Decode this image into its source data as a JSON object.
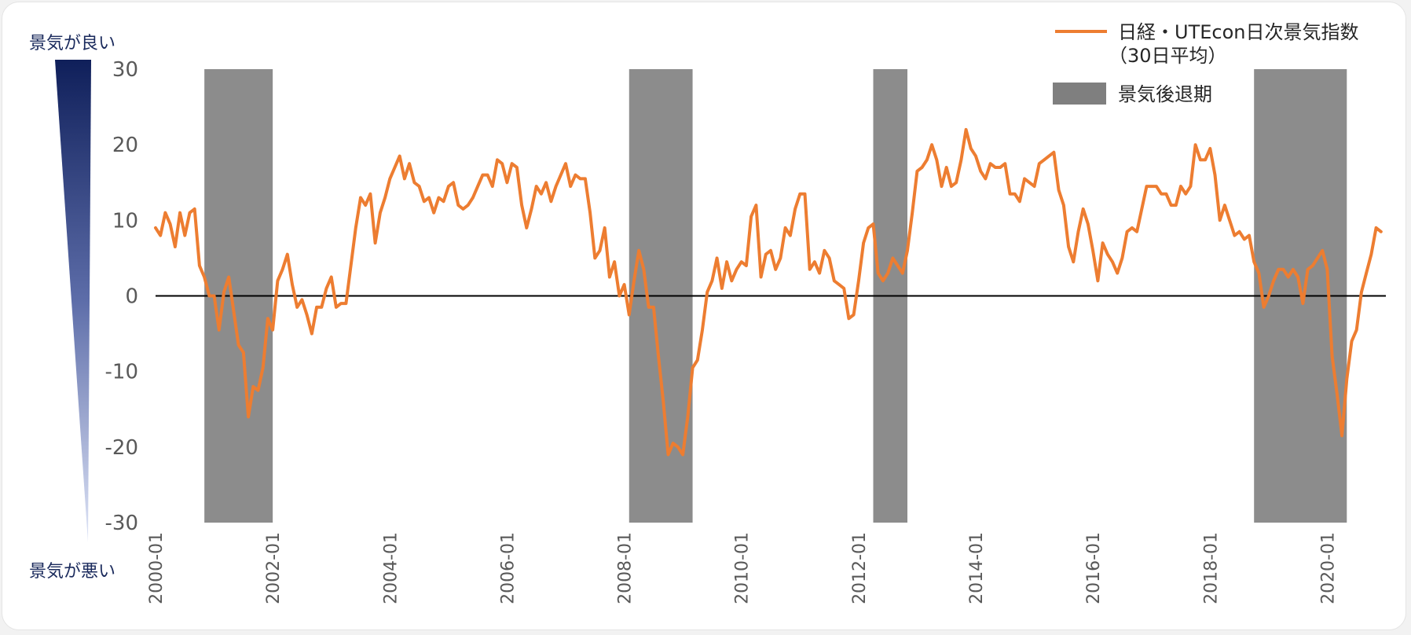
{
  "colors": {
    "line": "#ED7D31",
    "recession": "#8C8C8C",
    "zero_line": "#000000",
    "gradient_top": "#0f1f5a",
    "gradient_bottom": "#dfe5f7"
  },
  "side_labels": {
    "good": "景気が良い",
    "bad": "景気が悪い"
  },
  "chart_data": {
    "type": "line",
    "title": "",
    "xlabel": "",
    "ylabel": "",
    "ylim": [
      -30,
      30
    ],
    "y_ticks": [
      30,
      20,
      10,
      0,
      -10,
      -20,
      -30
    ],
    "x_range": [
      "2000-01",
      "2021-01"
    ],
    "x_ticks": [
      "2000-01",
      "2002-01",
      "2004-01",
      "2006-01",
      "2008-01",
      "2010-01",
      "2012-01",
      "2014-01",
      "2016-01",
      "2018-01",
      "2020-01"
    ],
    "legend_position": "top-right",
    "legend": {
      "line_label_1": "日経・UTEcon日次景気指数",
      "line_label_2": "（30日平均）",
      "shade_label": "景気後退期"
    },
    "recessions": [
      {
        "start": "2000-11",
        "end": "2002-01"
      },
      {
        "start": "2008-02",
        "end": "2009-03"
      },
      {
        "start": "2012-04",
        "end": "2012-11"
      },
      {
        "start": "2018-10",
        "end": "2020-05"
      }
    ],
    "series": [
      {
        "points": [
          [
            "2000-01",
            9
          ],
          [
            "2000-02",
            8
          ],
          [
            "2000-03",
            11
          ],
          [
            "2000-04",
            9.5
          ],
          [
            "2000-05",
            6.5
          ],
          [
            "2000-06",
            11
          ],
          [
            "2000-07",
            8
          ],
          [
            "2000-08",
            11
          ],
          [
            "2000-09",
            11.5
          ],
          [
            "2000-10",
            4
          ],
          [
            "2000-11",
            2.5
          ],
          [
            "2000-12",
            0
          ],
          [
            "2001-01",
            0
          ],
          [
            "2001-02",
            -4.5
          ],
          [
            "2001-03",
            0.5
          ],
          [
            "2001-04",
            2.5
          ],
          [
            "2001-05",
            -2
          ],
          [
            "2001-06",
            -6.5
          ],
          [
            "2001-07",
            -7.5
          ],
          [
            "2001-08",
            -16
          ],
          [
            "2001-09",
            -12
          ],
          [
            "2001-10",
            -12.5
          ],
          [
            "2001-11",
            -9.5
          ],
          [
            "2001-12",
            -3
          ],
          [
            "2002-01",
            -4.5
          ],
          [
            "2002-02",
            2
          ],
          [
            "2002-03",
            3.5
          ],
          [
            "2002-04",
            5.5
          ],
          [
            "2002-05",
            1.5
          ],
          [
            "2002-06",
            -1.5
          ],
          [
            "2002-07",
            -0.5
          ],
          [
            "2002-08",
            -2.5
          ],
          [
            "2002-09",
            -5
          ],
          [
            "2002-10",
            -1.5
          ],
          [
            "2002-11",
            -1.5
          ],
          [
            "2002-12",
            1
          ],
          [
            "2003-01",
            2.5
          ],
          [
            "2003-02",
            -1.5
          ],
          [
            "2003-03",
            -1
          ],
          [
            "2003-04",
            -1
          ],
          [
            "2003-05",
            4
          ],
          [
            "2003-06",
            9
          ],
          [
            "2003-07",
            13
          ],
          [
            "2003-08",
            12
          ],
          [
            "2003-09",
            13.5
          ],
          [
            "2003-10",
            7
          ],
          [
            "2003-11",
            11
          ],
          [
            "2003-12",
            13
          ],
          [
            "2004-01",
            15.5
          ],
          [
            "2004-02",
            17
          ],
          [
            "2004-03",
            18.5
          ],
          [
            "2004-04",
            15.5
          ],
          [
            "2004-05",
            17.5
          ],
          [
            "2004-06",
            15
          ],
          [
            "2004-07",
            14.5
          ],
          [
            "2004-08",
            12.5
          ],
          [
            "2004-09",
            13
          ],
          [
            "2004-10",
            11
          ],
          [
            "2004-11",
            13
          ],
          [
            "2004-12",
            12.5
          ],
          [
            "2005-01",
            14.5
          ],
          [
            "2005-02",
            15
          ],
          [
            "2005-03",
            12
          ],
          [
            "2005-04",
            11.5
          ],
          [
            "2005-05",
            12
          ],
          [
            "2005-06",
            13
          ],
          [
            "2005-07",
            14.5
          ],
          [
            "2005-08",
            16
          ],
          [
            "2005-09",
            16
          ],
          [
            "2005-10",
            14.5
          ],
          [
            "2005-11",
            18
          ],
          [
            "2005-12",
            17.5
          ],
          [
            "2006-01",
            15
          ],
          [
            "2006-02",
            17.5
          ],
          [
            "2006-03",
            17
          ],
          [
            "2006-04",
            12
          ],
          [
            "2006-05",
            9
          ],
          [
            "2006-06",
            11.5
          ],
          [
            "2006-07",
            14.5
          ],
          [
            "2006-08",
            13.5
          ],
          [
            "2006-09",
            15
          ],
          [
            "2006-10",
            12.5
          ],
          [
            "2006-11",
            14.5
          ],
          [
            "2006-12",
            16
          ],
          [
            "2007-01",
            17.5
          ],
          [
            "2007-02",
            14.5
          ],
          [
            "2007-03",
            16
          ],
          [
            "2007-04",
            15.5
          ],
          [
            "2007-05",
            15.5
          ],
          [
            "2007-06",
            11
          ],
          [
            "2007-07",
            5
          ],
          [
            "2007-08",
            6
          ],
          [
            "2007-09",
            9
          ],
          [
            "2007-10",
            2.5
          ],
          [
            "2007-11",
            4.5
          ],
          [
            "2007-12",
            0
          ],
          [
            "2008-01",
            1.5
          ],
          [
            "2008-02",
            -2.5
          ],
          [
            "2008-03",
            2
          ],
          [
            "2008-04",
            6
          ],
          [
            "2008-05",
            3.5
          ],
          [
            "2008-06",
            -1.5
          ],
          [
            "2008-07",
            -1.5
          ],
          [
            "2008-08",
            -8
          ],
          [
            "2008-09",
            -14
          ],
          [
            "2008-10",
            -21
          ],
          [
            "2008-11",
            -19.5
          ],
          [
            "2008-12",
            -20
          ],
          [
            "2009-01",
            -21
          ],
          [
            "2009-02",
            -16
          ],
          [
            "2009-03",
            -9.5
          ],
          [
            "2009-04",
            -8.5
          ],
          [
            "2009-05",
            -4.5
          ],
          [
            "2009-06",
            0.5
          ],
          [
            "2009-07",
            2
          ],
          [
            "2009-08",
            5
          ],
          [
            "2009-09",
            1
          ],
          [
            "2009-10",
            4.5
          ],
          [
            "2009-11",
            2
          ],
          [
            "2009-12",
            3.5
          ],
          [
            "2010-01",
            4.5
          ],
          [
            "2010-02",
            4
          ],
          [
            "2010-03",
            10.5
          ],
          [
            "2010-04",
            12
          ],
          [
            "2010-05",
            2.5
          ],
          [
            "2010-06",
            5.5
          ],
          [
            "2010-07",
            6
          ],
          [
            "2010-08",
            3.5
          ],
          [
            "2010-09",
            5
          ],
          [
            "2010-10",
            9
          ],
          [
            "2010-11",
            8
          ],
          [
            "2010-12",
            11.5
          ],
          [
            "2011-01",
            13.5
          ],
          [
            "2011-02",
            13.5
          ],
          [
            "2011-03",
            3.5
          ],
          [
            "2011-04",
            4.5
          ],
          [
            "2011-05",
            3
          ],
          [
            "2011-06",
            6
          ],
          [
            "2011-07",
            5
          ],
          [
            "2011-08",
            2
          ],
          [
            "2011-09",
            1.5
          ],
          [
            "2011-10",
            1
          ],
          [
            "2011-11",
            -3
          ],
          [
            "2011-12",
            -2.5
          ],
          [
            "2012-01",
            2
          ],
          [
            "2012-02",
            7
          ],
          [
            "2012-03",
            9
          ],
          [
            "2012-04",
            9.5
          ],
          [
            "2012-05",
            3
          ],
          [
            "2012-06",
            2
          ],
          [
            "2012-07",
            3
          ],
          [
            "2012-08",
            5
          ],
          [
            "2012-09",
            4
          ],
          [
            "2012-10",
            3
          ],
          [
            "2012-11",
            6
          ],
          [
            "2012-12",
            11
          ],
          [
            "2013-01",
            16.5
          ],
          [
            "2013-02",
            17
          ],
          [
            "2013-03",
            18
          ],
          [
            "2013-04",
            20
          ],
          [
            "2013-05",
            18
          ],
          [
            "2013-06",
            14.5
          ],
          [
            "2013-07",
            17
          ],
          [
            "2013-08",
            14.5
          ],
          [
            "2013-09",
            15
          ],
          [
            "2013-10",
            18
          ],
          [
            "2013-11",
            22
          ],
          [
            "2013-12",
            19.5
          ],
          [
            "2014-01",
            18.5
          ],
          [
            "2014-02",
            16.5
          ],
          [
            "2014-03",
            15.5
          ],
          [
            "2014-04",
            17.5
          ],
          [
            "2014-05",
            17
          ],
          [
            "2014-06",
            17
          ],
          [
            "2014-07",
            17.5
          ],
          [
            "2014-08",
            13.5
          ],
          [
            "2014-09",
            13.5
          ],
          [
            "2014-10",
            12.5
          ],
          [
            "2014-11",
            15.5
          ],
          [
            "2014-12",
            15
          ],
          [
            "2015-01",
            14.5
          ],
          [
            "2015-02",
            17.5
          ],
          [
            "2015-03",
            18
          ],
          [
            "2015-04",
            18.5
          ],
          [
            "2015-05",
            19
          ],
          [
            "2015-06",
            14
          ],
          [
            "2015-07",
            12
          ],
          [
            "2015-08",
            6.5
          ],
          [
            "2015-09",
            4.5
          ],
          [
            "2015-10",
            8.5
          ],
          [
            "2015-11",
            11.5
          ],
          [
            "2015-12",
            9.5
          ],
          [
            "2016-01",
            6
          ],
          [
            "2016-02",
            2
          ],
          [
            "2016-03",
            7
          ],
          [
            "2016-04",
            5.5
          ],
          [
            "2016-05",
            4.5
          ],
          [
            "2016-06",
            3
          ],
          [
            "2016-07",
            5
          ],
          [
            "2016-08",
            8.5
          ],
          [
            "2016-09",
            9
          ],
          [
            "2016-10",
            8.5
          ],
          [
            "2016-11",
            11.5
          ],
          [
            "2016-12",
            14.5
          ],
          [
            "2017-01",
            14.5
          ],
          [
            "2017-02",
            14.5
          ],
          [
            "2017-03",
            13.5
          ],
          [
            "2017-04",
            13.5
          ],
          [
            "2017-05",
            12
          ],
          [
            "2017-06",
            12
          ],
          [
            "2017-07",
            14.5
          ],
          [
            "2017-08",
            13.5
          ],
          [
            "2017-09",
            14.5
          ],
          [
            "2017-10",
            20
          ],
          [
            "2017-11",
            18
          ],
          [
            "2017-12",
            18
          ],
          [
            "2018-01",
            19.5
          ],
          [
            "2018-02",
            16
          ],
          [
            "2018-03",
            10
          ],
          [
            "2018-04",
            12
          ],
          [
            "2018-05",
            10
          ],
          [
            "2018-06",
            8
          ],
          [
            "2018-07",
            8.5
          ],
          [
            "2018-08",
            7.5
          ],
          [
            "2018-09",
            8
          ],
          [
            "2018-10",
            4.5
          ],
          [
            "2018-11",
            3
          ],
          [
            "2018-12",
            -1.5
          ],
          [
            "2019-01",
            0
          ],
          [
            "2019-02",
            2
          ],
          [
            "2019-03",
            3.5
          ],
          [
            "2019-04",
            3.5
          ],
          [
            "2019-05",
            2.5
          ],
          [
            "2019-06",
            3.5
          ],
          [
            "2019-07",
            2.5
          ],
          [
            "2019-08",
            -1
          ],
          [
            "2019-09",
            3.5
          ],
          [
            "2019-10",
            4
          ],
          [
            "2019-11",
            5
          ],
          [
            "2019-12",
            6
          ],
          [
            "2020-01",
            3.5
          ],
          [
            "2020-02",
            -8
          ],
          [
            "2020-03",
            -13
          ],
          [
            "2020-04",
            -18.5
          ],
          [
            "2020-05",
            -11
          ],
          [
            "2020-06",
            -6
          ],
          [
            "2020-07",
            -4.5
          ],
          [
            "2020-08",
            0.5
          ],
          [
            "2020-09",
            3
          ],
          [
            "2020-10",
            5.5
          ],
          [
            "2020-11",
            9
          ],
          [
            "2020-12",
            8.5
          ]
        ]
      }
    ]
  }
}
